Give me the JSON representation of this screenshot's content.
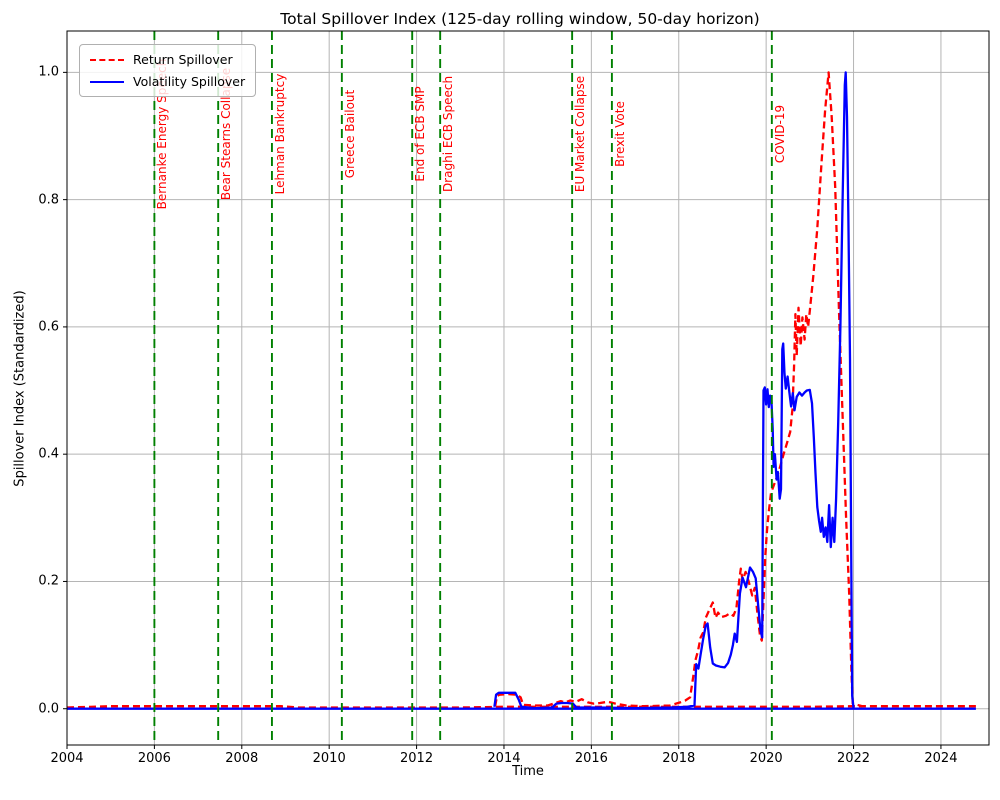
{
  "title": "Total Spillover Index (125-day rolling window, 50-day horizon)",
  "xlabel": "Time",
  "ylabel": "Spillover Index (Standardized)",
  "legend": {
    "entries": [
      {
        "label": "Return Spillover",
        "color": "#ff0000",
        "style": "dashed"
      },
      {
        "label": "Volatility Spillover",
        "color": "#0000ff",
        "style": "solid"
      }
    ],
    "position": "upper left"
  },
  "colors": {
    "return_series": "#ff0000",
    "volatility_series": "#0000ff",
    "event_line": "#008000",
    "event_text": "#ff0000",
    "grid": "#b5b5b5",
    "spine": "#000000",
    "background": "#ffffff"
  },
  "chart_data": {
    "type": "line",
    "title": "Total Spillover Index (125-day rolling window, 50-day horizon)",
    "xlabel": "Time",
    "ylabel": "Spillover Index (Standardized)",
    "xlim": [
      2004,
      2025.1
    ],
    "ylim": [
      -0.057,
      1.065
    ],
    "grid": true,
    "legend_position": "upper left",
    "xticks": [
      2004,
      2006,
      2008,
      2010,
      2012,
      2014,
      2016,
      2018,
      2020,
      2022,
      2024
    ],
    "xtick_labels": [
      "2004",
      "2006",
      "2008",
      "2010",
      "2012",
      "2014",
      "2016",
      "2018",
      "2020",
      "2022",
      "2024"
    ],
    "yticks": [
      0.0,
      0.2,
      0.4,
      0.6,
      0.8,
      1.0
    ],
    "ytick_labels": [
      "0.0",
      "0.2",
      "0.4",
      "0.6",
      "0.8",
      "1.0"
    ],
    "events": [
      {
        "label": "Bernanke Energy Speech",
        "x": 2006.0
      },
      {
        "label": "Bear Stearns Collapse",
        "x": 2007.46
      },
      {
        "label": "Lehman Bankruptcy",
        "x": 2008.69
      },
      {
        "label": "Greece Bailout",
        "x": 2010.29
      },
      {
        "label": "End of ECB SMP",
        "x": 2011.9
      },
      {
        "label": "Draghi ECB Speech",
        "x": 2012.54
      },
      {
        "label": "EU Market Collapse",
        "x": 2015.56
      },
      {
        "label": "Brexit Vote",
        "x": 2016.47
      },
      {
        "label": "COVID-19",
        "x": 2020.13
      }
    ],
    "series": [
      {
        "name": "Return Spillover",
        "color": "#ff0000",
        "style": "dashed",
        "segments": [
          [
            [
              2004.0,
              0.002
            ],
            [
              2004.6,
              0.003
            ],
            [
              2005.0,
              0.004
            ],
            [
              2006.0,
              0.004
            ],
            [
              2007.0,
              0.004
            ],
            [
              2008.0,
              0.004
            ],
            [
              2008.9,
              0.004
            ],
            [
              2009.3,
              0.002
            ],
            [
              2010.0,
              0.002
            ],
            [
              2011.0,
              0.002
            ],
            [
              2012.0,
              0.002
            ],
            [
              2013.0,
              0.002
            ],
            [
              2014.0,
              0.003
            ],
            [
              2015.0,
              0.003
            ],
            [
              2016.0,
              0.003
            ],
            [
              2017.0,
              0.003
            ],
            [
              2018.0,
              0.003
            ],
            [
              2019.0,
              0.003
            ],
            [
              2020.0,
              0.003
            ],
            [
              2021.0,
              0.003
            ],
            [
              2022.0,
              0.004
            ],
            [
              2023.0,
              0.004
            ],
            [
              2024.0,
              0.004
            ],
            [
              2024.8,
              0.004
            ]
          ],
          [
            [
              2013.8,
              0.004
            ],
            [
              2013.84,
              0.02
            ],
            [
              2013.9,
              0.022
            ],
            [
              2014.1,
              0.023
            ],
            [
              2014.3,
              0.022
            ],
            [
              2014.38,
              0.018
            ],
            [
              2014.44,
              0.006
            ],
            [
              2014.7,
              0.005
            ],
            [
              2015.0,
              0.005
            ],
            [
              2015.18,
              0.009
            ],
            [
              2015.3,
              0.012
            ],
            [
              2015.4,
              0.01
            ],
            [
              2015.52,
              0.013
            ],
            [
              2015.65,
              0.011
            ],
            [
              2015.78,
              0.015
            ],
            [
              2015.92,
              0.01
            ],
            [
              2016.05,
              0.008
            ],
            [
              2016.2,
              0.009
            ],
            [
              2016.38,
              0.011
            ],
            [
              2016.55,
              0.008
            ],
            [
              2016.8,
              0.005
            ],
            [
              2017.2,
              0.004
            ],
            [
              2017.8,
              0.005
            ],
            [
              2018.03,
              0.01
            ],
            [
              2018.15,
              0.013
            ],
            [
              2018.26,
              0.018
            ],
            [
              2018.33,
              0.05
            ],
            [
              2018.38,
              0.076
            ],
            [
              2018.44,
              0.091
            ],
            [
              2018.5,
              0.112
            ],
            [
              2018.56,
              0.12
            ],
            [
              2018.62,
              0.143
            ],
            [
              2018.71,
              0.157
            ],
            [
              2018.78,
              0.167
            ],
            [
              2018.84,
              0.143
            ],
            [
              2018.9,
              0.151
            ],
            [
              2018.97,
              0.144
            ],
            [
              2019.08,
              0.146
            ],
            [
              2019.17,
              0.15
            ],
            [
              2019.25,
              0.146
            ],
            [
              2019.32,
              0.158
            ],
            [
              2019.38,
              0.2
            ],
            [
              2019.42,
              0.22
            ],
            [
              2019.46,
              0.202
            ],
            [
              2019.53,
              0.215
            ],
            [
              2019.6,
              0.2
            ],
            [
              2019.68,
              0.178
            ],
            [
              2019.74,
              0.19
            ],
            [
              2019.8,
              0.15
            ],
            [
              2019.86,
              0.115
            ],
            [
              2019.9,
              0.107
            ],
            [
              2019.94,
              0.17
            ],
            [
              2019.98,
              0.24
            ],
            [
              2020.02,
              0.28
            ],
            [
              2020.06,
              0.31
            ],
            [
              2020.11,
              0.339
            ],
            [
              2020.18,
              0.352
            ],
            [
              2020.25,
              0.365
            ],
            [
              2020.32,
              0.38
            ],
            [
              2020.4,
              0.4
            ],
            [
              2020.48,
              0.418
            ],
            [
              2020.55,
              0.435
            ],
            [
              2020.6,
              0.47
            ],
            [
              2020.64,
              0.54
            ],
            [
              2020.67,
              0.62
            ],
            [
              2020.7,
              0.555
            ],
            [
              2020.74,
              0.63
            ],
            [
              2020.79,
              0.57
            ],
            [
              2020.83,
              0.615
            ],
            [
              2020.88,
              0.58
            ],
            [
              2020.92,
              0.62
            ],
            [
              2020.96,
              0.6
            ],
            [
              2021.0,
              0.625
            ],
            [
              2021.08,
              0.68
            ],
            [
              2021.17,
              0.755
            ],
            [
              2021.27,
              0.86
            ],
            [
              2021.35,
              0.94
            ],
            [
              2021.43,
              1.0
            ],
            [
              2021.5,
              0.93
            ],
            [
              2021.58,
              0.82
            ],
            [
              2021.67,
              0.62
            ],
            [
              2021.75,
              0.46
            ],
            [
              2021.83,
              0.3
            ],
            [
              2021.9,
              0.18
            ],
            [
              2021.95,
              0.06
            ],
            [
              2021.98,
              0.008
            ],
            [
              2022.2,
              0.004
            ]
          ]
        ]
      },
      {
        "name": "Volatility Spillover",
        "color": "#0000ff",
        "style": "solid",
        "segments": [
          [
            [
              2004.0,
              0.0
            ],
            [
              2006.0,
              0.0
            ],
            [
              2008.0,
              0.0
            ],
            [
              2010.0,
              0.0
            ],
            [
              2012.0,
              0.0
            ],
            [
              2014.0,
              0.0
            ],
            [
              2016.0,
              0.0
            ],
            [
              2018.0,
              0.0
            ],
            [
              2020.0,
              0.0
            ],
            [
              2022.0,
              0.0
            ],
            [
              2024.0,
              0.0
            ],
            [
              2024.8,
              0.0
            ]
          ],
          [
            [
              2013.78,
              0.003
            ],
            [
              2013.82,
              0.022
            ],
            [
              2013.88,
              0.025
            ],
            [
              2014.05,
              0.025
            ],
            [
              2014.26,
              0.025
            ],
            [
              2014.34,
              0.014
            ],
            [
              2014.4,
              0.003
            ],
            [
              2014.7,
              0.001
            ],
            [
              2015.1,
              0.002
            ],
            [
              2015.2,
              0.008
            ],
            [
              2015.32,
              0.009
            ],
            [
              2015.45,
              0.009
            ],
            [
              2015.58,
              0.008
            ],
            [
              2015.66,
              0.002
            ],
            [
              2016.2,
              0.002
            ],
            [
              2017.0,
              0.001
            ],
            [
              2017.8,
              0.002
            ],
            [
              2018.2,
              0.003
            ],
            [
              2018.36,
              0.005
            ],
            [
              2018.4,
              0.07
            ],
            [
              2018.45,
              0.063
            ],
            [
              2018.5,
              0.085
            ],
            [
              2018.56,
              0.11
            ],
            [
              2018.62,
              0.131
            ],
            [
              2018.66,
              0.134
            ],
            [
              2018.72,
              0.096
            ],
            [
              2018.78,
              0.071
            ],
            [
              2018.85,
              0.068
            ],
            [
              2018.95,
              0.066
            ],
            [
              2019.05,
              0.065
            ],
            [
              2019.13,
              0.072
            ],
            [
              2019.19,
              0.085
            ],
            [
              2019.24,
              0.1
            ],
            [
              2019.28,
              0.118
            ],
            [
              2019.33,
              0.105
            ],
            [
              2019.4,
              0.181
            ],
            [
              2019.46,
              0.206
            ],
            [
              2019.54,
              0.191
            ],
            [
              2019.63,
              0.222
            ],
            [
              2019.7,
              0.215
            ],
            [
              2019.76,
              0.205
            ],
            [
              2019.82,
              0.16
            ],
            [
              2019.87,
              0.123
            ],
            [
              2019.91,
              0.112
            ],
            [
              2019.94,
              0.5
            ],
            [
              2019.97,
              0.505
            ],
            [
              2020.0,
              0.478
            ],
            [
              2020.03,
              0.502
            ],
            [
              2020.06,
              0.474
            ],
            [
              2020.09,
              0.492
            ],
            [
              2020.12,
              0.485
            ],
            [
              2020.15,
              0.44
            ],
            [
              2020.17,
              0.38
            ],
            [
              2020.2,
              0.4
            ],
            [
              2020.24,
              0.36
            ],
            [
              2020.27,
              0.372
            ],
            [
              2020.31,
              0.33
            ],
            [
              2020.34,
              0.345
            ],
            [
              2020.37,
              0.565
            ],
            [
              2020.39,
              0.574
            ],
            [
              2020.42,
              0.527
            ],
            [
              2020.45,
              0.503
            ],
            [
              2020.49,
              0.522
            ],
            [
              2020.53,
              0.498
            ],
            [
              2020.57,
              0.475
            ],
            [
              2020.61,
              0.496
            ],
            [
              2020.65,
              0.469
            ],
            [
              2020.7,
              0.49
            ],
            [
              2020.76,
              0.497
            ],
            [
              2020.82,
              0.492
            ],
            [
              2020.88,
              0.497
            ],
            [
              2020.93,
              0.5
            ],
            [
              2021.0,
              0.501
            ],
            [
              2021.05,
              0.48
            ],
            [
              2021.09,
              0.427
            ],
            [
              2021.13,
              0.37
            ],
            [
              2021.17,
              0.317
            ],
            [
              2021.21,
              0.296
            ],
            [
              2021.25,
              0.278
            ],
            [
              2021.28,
              0.3
            ],
            [
              2021.32,
              0.27
            ],
            [
              2021.36,
              0.285
            ],
            [
              2021.4,
              0.262
            ],
            [
              2021.44,
              0.32
            ],
            [
              2021.48,
              0.254
            ],
            [
              2021.52,
              0.3
            ],
            [
              2021.56,
              0.262
            ],
            [
              2021.6,
              0.33
            ],
            [
              2021.65,
              0.45
            ],
            [
              2021.7,
              0.6
            ],
            [
              2021.75,
              0.8
            ],
            [
              2021.8,
              0.98
            ],
            [
              2021.82,
              1.0
            ],
            [
              2021.85,
              0.93
            ],
            [
              2021.88,
              0.78
            ],
            [
              2021.92,
              0.55
            ],
            [
              2021.95,
              0.2
            ],
            [
              2021.97,
              0.02
            ],
            [
              2022.0,
              0.002
            ]
          ]
        ]
      }
    ]
  }
}
